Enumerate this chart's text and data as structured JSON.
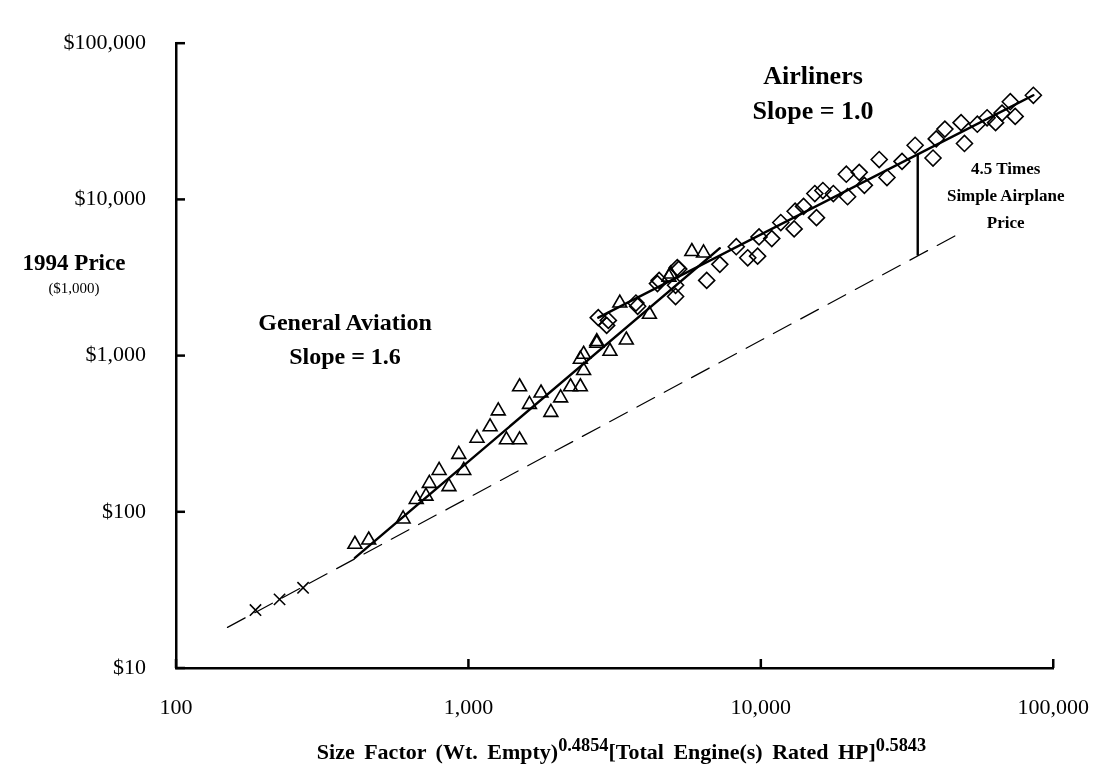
{
  "chart_data": {
    "type": "scatter",
    "xlabel": "Size Factor  (Wt. Empty)$^{0.4854}$[Total Engine(s) Rated HP]$^{0.5843}$",
    "ylabel": "1994 Price\n($1,000)",
    "log": "xy",
    "xlim": [
      100,
      100000
    ],
    "xticks": [
      100,
      {
        "value": 1000,
        "label": "1,000"
      },
      {
        "value": 10000,
        "label": "10,000"
      },
      {
        "value": 100000,
        "label": "100,000"
      }
    ],
    "ylim": [
      10,
      100000
    ],
    "yticks": [
      {
        "value": 10,
        "label": "$10"
      },
      {
        "value": 100,
        "label": "$100"
      },
      {
        "value": 1000,
        "label": "$1,000"
      },
      {
        "value": 10000,
        "label": "$10,000"
      },
      {
        "value": 100000,
        "label": "$100,000"
      }
    ],
    "annotations": [
      "General Aviation\nSlope = 1.6",
      "Airliners\nSlope = 1.0",
      {
        "text": "4.5 Times\nSimple Airplane\nPrice",
        "x": 34400,
        "y": 10400
      }
    ],
    "series": [
      {
        "marker": "triangle",
        "color": "#000000",
        "x": [
          409,
          456,
          598,
          663,
          735,
          858,
          794,
          927,
          1070,
          716,
          964,
          1186,
          1265,
          1496,
          1496,
          1349,
          1771,
          1914,
          1617,
          2067,
          2235,
          2414,
          2477,
          2414,
          2748,
          3048,
          3467,
          3294,
          4159,
          4853,
          5808,
          6368,
          4909,
          2477,
          2748
        ],
        "values": [
          62,
          66,
          90,
          120,
          152,
          145,
          184,
          233,
          296,
          126,
          184,
          350,
          443,
          632,
          289,
          289,
          576,
          433,
          487,
          536,
          632,
          632,
          802,
          948,
          1230,
          1066,
          1259,
          2170,
          1840,
          3180,
          4640,
          4540,
          3330,
          1020,
          1200
        ]
      },
      {
        "marker": "diamond",
        "color": "#000000",
        "x": [
          2780,
          3010,
          3790,
          4430,
          5110,
          5240,
          6530,
          2970,
          3740,
          4490,
          5180,
          5110,
          7240,
          8240,
          9020,
          9750,
          9860,
          10900,
          11700,
          13000,
          13100,
          14000,
          15500,
          15300,
          16300,
          17700,
          19600,
          19800,
          21700,
          22600,
          25400,
          27000,
          30400,
          33700,
          38800,
          39800,
          42600,
          49700,
          48400,
          55000,
          59400,
          63500,
          66800,
          74100,
          71300,
          85500
        ],
        "values": [
          1750,
          1680,
          2070,
          2890,
          2820,
          3580,
          3030,
          1560,
          2170,
          3030,
          3660,
          2390,
          3840,
          4980,
          4230,
          4330,
          5750,
          5610,
          7110,
          6470,
          8400,
          9020,
          7640,
          10900,
          11400,
          10900,
          14500,
          10400,
          14900,
          12300,
          18000,
          13800,
          17500,
          22200,
          18400,
          24400,
          28200,
          22800,
          31000,
          30300,
          33300,
          31000,
          35700,
          34000,
          42200,
          46400
        ]
      },
      {
        "marker": "cross",
        "color": "#000000",
        "x": [
          187,
          226,
          272
        ],
        "values": [
          23.5,
          27.5,
          32.6
        ]
      },
      {
        "type": "line",
        "marker": "none",
        "color": "#000000",
        "x": [
          409,
          7240
        ],
        "values": [
          50.7,
          4870
        ]
      },
      {
        "type": "line",
        "marker": "none",
        "color": "#000000",
        "x": [
          2780,
          85500
        ],
        "values": [
          1750,
          46400
        ]
      },
      {
        "type": "line",
        "marker": "none",
        "line_style": "dashed",
        "color": "#000000",
        "x": [
          150,
          46500
        ],
        "values": [
          18.2,
          5890
        ]
      },
      {
        "type": "line",
        "marker": "none",
        "color": "#000000",
        "x": [
          34400,
          34400
        ],
        "values": [
          4430,
          19300
        ]
      }
    ]
  }
}
